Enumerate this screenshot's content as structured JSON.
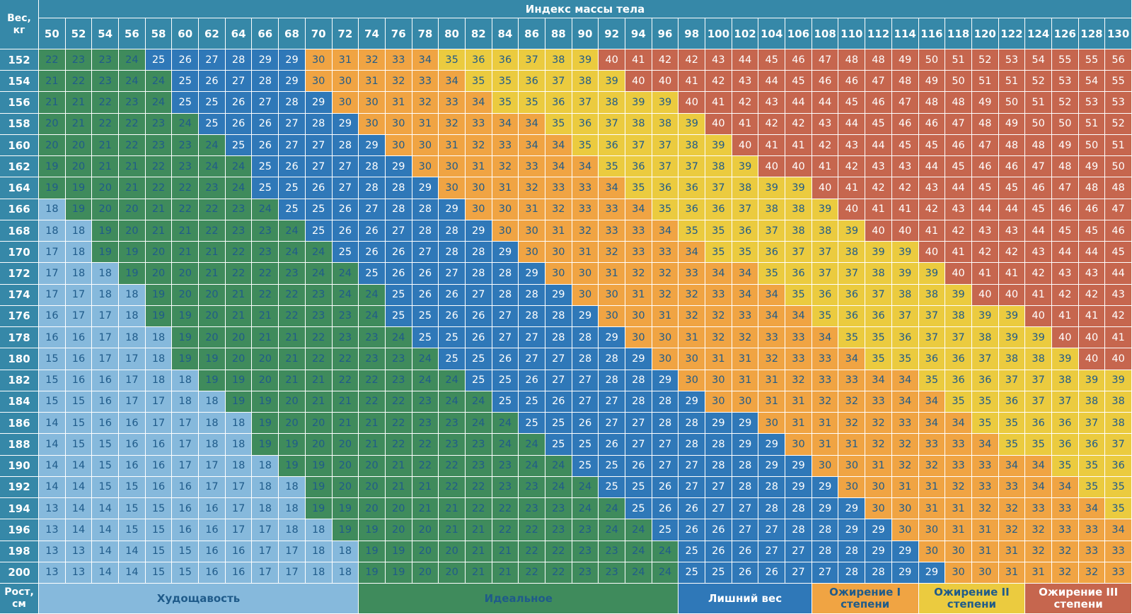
{
  "chart_data": {
    "type": "heatmap",
    "title": "Индекс массы тела",
    "corner_top": [
      "Вес,",
      "кг"
    ],
    "corner_bottom": [
      "Рост,",
      "см"
    ],
    "x_weights_kg": [
      50,
      52,
      54,
      56,
      58,
      60,
      62,
      64,
      66,
      68,
      70,
      72,
      74,
      76,
      78,
      80,
      82,
      84,
      86,
      88,
      90,
      92,
      94,
      96,
      98,
      100,
      102,
      104,
      106,
      108,
      110,
      112,
      114,
      116,
      118,
      120,
      122,
      124,
      126,
      128,
      130
    ],
    "y_heights_cm": [
      152,
      154,
      156,
      158,
      160,
      162,
      164,
      166,
      168,
      170,
      172,
      174,
      176,
      178,
      180,
      182,
      184,
      186,
      188,
      190,
      192,
      194,
      196,
      198,
      200
    ],
    "values": [
      [
        22,
        23,
        23,
        24,
        25,
        26,
        27,
        28,
        29,
        29,
        30,
        31,
        32,
        33,
        34,
        35,
        36,
        36,
        37,
        38,
        39,
        40,
        41,
        42,
        42,
        43,
        44,
        45,
        46,
        47,
        48,
        48,
        49,
        50,
        51,
        52,
        53,
        54,
        55,
        55,
        56
      ],
      [
        21,
        22,
        23,
        24,
        24,
        25,
        26,
        27,
        28,
        29,
        30,
        30,
        31,
        32,
        33,
        34,
        35,
        35,
        36,
        37,
        38,
        39,
        40,
        40,
        41,
        42,
        43,
        44,
        45,
        46,
        46,
        47,
        48,
        49,
        50,
        51,
        51,
        52,
        53,
        54,
        55
      ],
      [
        21,
        21,
        22,
        23,
        24,
        25,
        25,
        26,
        27,
        28,
        29,
        30,
        30,
        31,
        32,
        33,
        34,
        35,
        35,
        36,
        37,
        38,
        39,
        39,
        40,
        41,
        42,
        43,
        44,
        44,
        45,
        46,
        47,
        48,
        48,
        49,
        50,
        51,
        52,
        53,
        53
      ],
      [
        20,
        21,
        22,
        22,
        23,
        24,
        25,
        26,
        26,
        27,
        28,
        29,
        30,
        30,
        31,
        32,
        33,
        34,
        34,
        35,
        36,
        37,
        38,
        38,
        39,
        40,
        41,
        42,
        42,
        43,
        44,
        45,
        46,
        46,
        47,
        48,
        49,
        50,
        50,
        51,
        52
      ],
      [
        20,
        20,
        21,
        22,
        23,
        23,
        24,
        25,
        26,
        27,
        27,
        28,
        29,
        30,
        30,
        31,
        32,
        33,
        34,
        34,
        35,
        36,
        37,
        37,
        38,
        39,
        40,
        41,
        41,
        42,
        43,
        44,
        45,
        45,
        46,
        47,
        48,
        48,
        49,
        50,
        51
      ],
      [
        19,
        20,
        21,
        21,
        22,
        23,
        24,
        24,
        25,
        26,
        27,
        27,
        28,
        29,
        30,
        30,
        31,
        32,
        33,
        34,
        34,
        35,
        36,
        37,
        37,
        38,
        39,
        40,
        40,
        41,
        42,
        43,
        43,
        44,
        45,
        46,
        46,
        47,
        48,
        49,
        50
      ],
      [
        19,
        19,
        20,
        21,
        22,
        22,
        23,
        24,
        25,
        25,
        26,
        27,
        28,
        28,
        29,
        30,
        30,
        31,
        32,
        33,
        33,
        34,
        35,
        36,
        36,
        37,
        38,
        39,
        39,
        40,
        41,
        42,
        42,
        43,
        44,
        45,
        45,
        46,
        47,
        48,
        48
      ],
      [
        18,
        19,
        20,
        20,
        21,
        22,
        22,
        23,
        24,
        25,
        25,
        26,
        27,
        28,
        28,
        29,
        30,
        30,
        31,
        32,
        33,
        33,
        34,
        35,
        36,
        36,
        37,
        38,
        38,
        39,
        40,
        41,
        41,
        42,
        43,
        44,
        44,
        45,
        46,
        46,
        47
      ],
      [
        18,
        18,
        19,
        20,
        21,
        21,
        22,
        23,
        23,
        24,
        25,
        26,
        26,
        27,
        28,
        28,
        29,
        30,
        30,
        31,
        32,
        33,
        33,
        34,
        35,
        35,
        36,
        37,
        38,
        38,
        39,
        40,
        40,
        41,
        42,
        43,
        43,
        44,
        45,
        45,
        46
      ],
      [
        17,
        18,
        19,
        19,
        20,
        21,
        21,
        22,
        23,
        24,
        24,
        25,
        26,
        26,
        27,
        28,
        28,
        29,
        30,
        30,
        31,
        32,
        33,
        33,
        34,
        35,
        35,
        36,
        37,
        37,
        38,
        39,
        39,
        40,
        41,
        42,
        42,
        43,
        44,
        44,
        45
      ],
      [
        17,
        18,
        18,
        19,
        20,
        20,
        21,
        22,
        22,
        23,
        24,
        24,
        25,
        26,
        26,
        27,
        28,
        28,
        29,
        30,
        30,
        31,
        32,
        32,
        33,
        34,
        34,
        35,
        36,
        37,
        37,
        38,
        39,
        39,
        40,
        41,
        41,
        42,
        43,
        43,
        44
      ],
      [
        17,
        17,
        18,
        18,
        19,
        20,
        20,
        21,
        22,
        22,
        23,
        24,
        24,
        25,
        26,
        26,
        27,
        28,
        28,
        29,
        30,
        30,
        31,
        32,
        32,
        33,
        34,
        34,
        35,
        36,
        36,
        37,
        38,
        38,
        39,
        40,
        40,
        41,
        42,
        42,
        43
      ],
      [
        16,
        17,
        17,
        18,
        19,
        19,
        20,
        21,
        21,
        22,
        23,
        23,
        24,
        25,
        25,
        26,
        26,
        27,
        28,
        28,
        29,
        30,
        30,
        31,
        32,
        32,
        33,
        34,
        34,
        35,
        36,
        36,
        37,
        37,
        38,
        39,
        39,
        40,
        41,
        41,
        42
      ],
      [
        16,
        16,
        17,
        18,
        18,
        19,
        20,
        20,
        21,
        21,
        22,
        23,
        23,
        24,
        25,
        25,
        26,
        27,
        27,
        28,
        28,
        29,
        30,
        30,
        31,
        32,
        32,
        33,
        33,
        34,
        35,
        35,
        36,
        37,
        37,
        38,
        39,
        39,
        40,
        40,
        41
      ],
      [
        15,
        16,
        17,
        17,
        18,
        19,
        19,
        20,
        20,
        21,
        22,
        22,
        23,
        23,
        24,
        25,
        25,
        26,
        27,
        27,
        28,
        28,
        29,
        30,
        30,
        31,
        31,
        32,
        33,
        33,
        34,
        35,
        35,
        36,
        36,
        37,
        38,
        38,
        39,
        40,
        40
      ],
      [
        15,
        16,
        16,
        17,
        18,
        18,
        19,
        19,
        20,
        21,
        21,
        22,
        22,
        23,
        24,
        24,
        25,
        25,
        26,
        27,
        27,
        28,
        28,
        29,
        30,
        30,
        31,
        31,
        32,
        33,
        33,
        34,
        34,
        35,
        36,
        36,
        37,
        37,
        38,
        39,
        39
      ],
      [
        15,
        15,
        16,
        17,
        17,
        18,
        18,
        19,
        19,
        20,
        21,
        21,
        22,
        22,
        23,
        24,
        24,
        25,
        25,
        26,
        27,
        27,
        28,
        28,
        29,
        30,
        30,
        31,
        31,
        32,
        32,
        33,
        34,
        34,
        35,
        35,
        36,
        37,
        37,
        38,
        38
      ],
      [
        14,
        15,
        16,
        16,
        17,
        17,
        18,
        18,
        19,
        20,
        20,
        21,
        21,
        22,
        23,
        23,
        24,
        24,
        25,
        25,
        26,
        27,
        27,
        28,
        28,
        29,
        29,
        30,
        31,
        31,
        32,
        32,
        33,
        34,
        34,
        35,
        35,
        36,
        36,
        37,
        38
      ],
      [
        14,
        15,
        15,
        16,
        16,
        17,
        18,
        18,
        19,
        19,
        20,
        20,
        21,
        22,
        22,
        23,
        23,
        24,
        24,
        25,
        25,
        26,
        27,
        27,
        28,
        28,
        29,
        29,
        30,
        31,
        31,
        32,
        32,
        33,
        33,
        34,
        35,
        35,
        36,
        36,
        37
      ],
      [
        14,
        14,
        15,
        16,
        16,
        17,
        17,
        18,
        18,
        19,
        19,
        20,
        20,
        21,
        22,
        22,
        23,
        23,
        24,
        24,
        25,
        25,
        26,
        27,
        27,
        28,
        28,
        29,
        29,
        30,
        30,
        31,
        32,
        32,
        33,
        33,
        34,
        34,
        35,
        35,
        36
      ],
      [
        14,
        14,
        15,
        15,
        16,
        16,
        17,
        17,
        18,
        18,
        19,
        20,
        20,
        21,
        21,
        22,
        22,
        23,
        23,
        24,
        24,
        25,
        25,
        26,
        27,
        27,
        28,
        28,
        29,
        29,
        30,
        30,
        31,
        31,
        32,
        33,
        33,
        34,
        34,
        35,
        35
      ],
      [
        13,
        14,
        14,
        15,
        15,
        16,
        16,
        17,
        18,
        18,
        19,
        19,
        20,
        20,
        21,
        21,
        22,
        22,
        23,
        23,
        24,
        24,
        25,
        26,
        26,
        27,
        27,
        28,
        28,
        29,
        29,
        30,
        30,
        31,
        31,
        32,
        32,
        33,
        33,
        34,
        35
      ],
      [
        13,
        14,
        14,
        15,
        15,
        16,
        16,
        17,
        17,
        18,
        18,
        19,
        19,
        20,
        20,
        21,
        21,
        22,
        22,
        23,
        23,
        24,
        24,
        25,
        26,
        26,
        27,
        27,
        28,
        28,
        29,
        29,
        30,
        30,
        31,
        31,
        32,
        32,
        33,
        33,
        34
      ],
      [
        13,
        13,
        14,
        14,
        15,
        15,
        16,
        16,
        17,
        17,
        18,
        18,
        19,
        19,
        20,
        20,
        21,
        21,
        22,
        22,
        23,
        23,
        24,
        24,
        25,
        26,
        26,
        27,
        27,
        28,
        28,
        29,
        29,
        30,
        30,
        31,
        31,
        32,
        32,
        33,
        33
      ],
      [
        13,
        13,
        14,
        14,
        15,
        15,
        16,
        16,
        17,
        17,
        18,
        18,
        19,
        19,
        20,
        20,
        21,
        21,
        22,
        22,
        23,
        23,
        24,
        24,
        25,
        25,
        26,
        26,
        27,
        27,
        28,
        28,
        29,
        29,
        30,
        30,
        31,
        31,
        32,
        32,
        33
      ]
    ],
    "categories": [
      {
        "label": [
          "Худощавость"
        ],
        "max": 18,
        "color": "#86b9dc",
        "text_color": "#1f5b8a"
      },
      {
        "label": [
          "Идеальное"
        ],
        "max": 24,
        "color": "#3f8b5c",
        "text_color": "#1f5b8a"
      },
      {
        "label": [
          "Лишний вес"
        ],
        "max": 29,
        "color": "#2f78b8",
        "text_color": "#ffffff"
      },
      {
        "label": [
          "Ожирение I",
          "степени"
        ],
        "max": 34,
        "color": "#f0a443",
        "text_color": "#1f5b8a"
      },
      {
        "label": [
          "Ожирение II",
          "степени"
        ],
        "max": 39,
        "color": "#ebcb3f",
        "text_color": "#1f5b8a"
      },
      {
        "label": [
          "Ожирение III",
          "степени"
        ],
        "max": 99,
        "color": "#c6664e",
        "text_color": "#ffffff"
      }
    ],
    "legend_weight_span": [
      [
        50,
        72
      ],
      [
        74,
        96
      ],
      [
        98,
        106
      ],
      [
        108,
        114
      ],
      [
        116,
        122
      ],
      [
        124,
        130
      ]
    ]
  }
}
